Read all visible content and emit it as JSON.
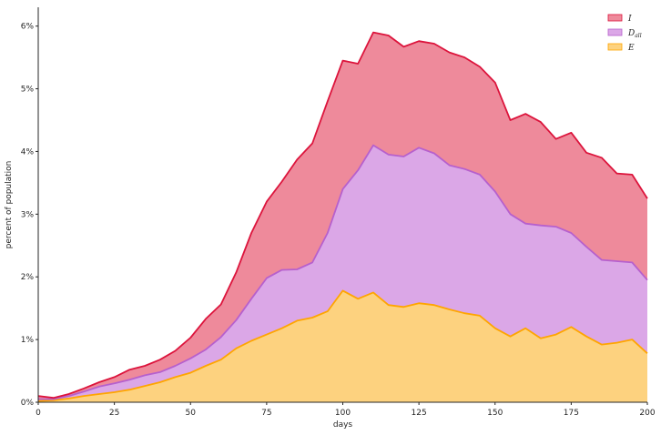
{
  "chart_data": {
    "type": "area",
    "stacked": true,
    "xlabel": "days",
    "ylabel": "percent of population",
    "xlim": [
      0,
      200
    ],
    "ylim": [
      0,
      6.3
    ],
    "xticks": [
      0,
      25,
      50,
      75,
      100,
      125,
      150,
      175,
      200
    ],
    "yticks": [
      0,
      1,
      2,
      3,
      4,
      5,
      6
    ],
    "ytick_format": "percent",
    "grid": false,
    "legend_position": "top-right",
    "x": [
      0,
      5,
      10,
      15,
      20,
      25,
      30,
      35,
      40,
      45,
      50,
      55,
      60,
      65,
      70,
      75,
      80,
      85,
      90,
      95,
      100,
      105,
      110,
      115,
      120,
      125,
      130,
      135,
      140,
      145,
      150,
      155,
      160,
      165,
      170,
      175,
      180,
      185,
      190,
      195,
      200
    ],
    "series": [
      {
        "name": "E",
        "color": "#ffa500",
        "fill": "#fdd27f",
        "values": [
          0.02,
          0.03,
          0.06,
          0.1,
          0.13,
          0.16,
          0.2,
          0.26,
          0.32,
          0.4,
          0.47,
          0.58,
          0.68,
          0.86,
          0.98,
          1.08,
          1.18,
          1.3,
          1.35,
          1.45,
          1.78,
          1.65,
          1.75,
          1.55,
          1.52,
          1.58,
          1.55,
          1.48,
          1.42,
          1.38,
          1.18,
          1.05,
          1.18,
          1.02,
          1.08,
          1.2,
          1.05,
          0.92,
          0.95,
          1.0,
          0.78
        ]
      },
      {
        "name": "D_all",
        "color": "#b660cd",
        "fill": "#dba7e7",
        "values": [
          0.03,
          0.02,
          0.04,
          0.07,
          0.12,
          0.14,
          0.16,
          0.17,
          0.16,
          0.18,
          0.23,
          0.26,
          0.36,
          0.45,
          0.67,
          0.9,
          0.93,
          0.82,
          0.88,
          1.25,
          1.62,
          2.05,
          2.35,
          2.4,
          2.4,
          2.48,
          2.42,
          2.3,
          2.3,
          2.25,
          2.18,
          1.95,
          1.67,
          1.8,
          1.72,
          1.5,
          1.43,
          1.35,
          1.3,
          1.23,
          1.17
        ]
      },
      {
        "name": "I",
        "color": "#dc143c",
        "fill": "#ee8a9b",
        "values": [
          0.05,
          0.02,
          0.03,
          0.05,
          0.07,
          0.1,
          0.16,
          0.15,
          0.2,
          0.24,
          0.33,
          0.49,
          0.52,
          0.76,
          1.05,
          1.22,
          1.41,
          1.75,
          1.9,
          2.1,
          2.05,
          1.7,
          1.8,
          1.9,
          1.75,
          1.7,
          1.75,
          1.8,
          1.78,
          1.72,
          1.74,
          1.5,
          1.75,
          1.65,
          1.4,
          1.6,
          1.5,
          1.63,
          1.4,
          1.4,
          1.3
        ]
      }
    ],
    "legend": [
      {
        "label": "I",
        "series": "I"
      },
      {
        "label": "D",
        "sub": "all",
        "series": "D_all"
      },
      {
        "label": "E",
        "series": "E"
      }
    ]
  }
}
